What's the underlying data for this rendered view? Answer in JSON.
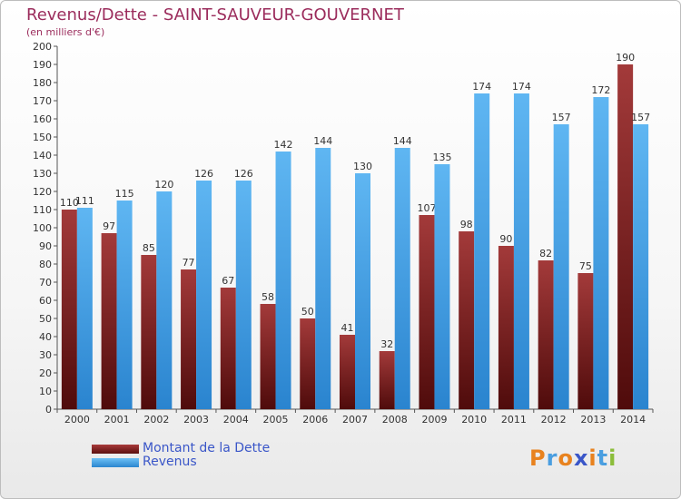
{
  "chart_data": {
    "type": "bar",
    "title": "Revenus/Dette - SAINT-SAUVEUR-GOUVERNET",
    "subtitle": "(en milliers d'€)",
    "categories": [
      "2000",
      "2001",
      "2002",
      "2003",
      "2004",
      "2005",
      "2006",
      "2007",
      "2008",
      "2009",
      "2010",
      "2011",
      "2012",
      "2013",
      "2014"
    ],
    "series": [
      {
        "name": "Montant de la Dette",
        "color": "#7f1d1d",
        "values": [
          110,
          97,
          85,
          77,
          67,
          58,
          50,
          41,
          32,
          107,
          98,
          90,
          82,
          75,
          190
        ]
      },
      {
        "name": "Revenus",
        "color": "#3b9de3",
        "values": [
          111,
          115,
          120,
          126,
          126,
          142,
          144,
          130,
          144,
          135,
          174,
          174,
          157,
          172,
          157
        ]
      }
    ],
    "ylim": [
      0,
      200
    ],
    "ytick_step": 10,
    "grid": false,
    "legend_position": "bottom-left"
  },
  "logo": {
    "letters": [
      "P",
      "r",
      "o",
      "x",
      "i",
      "t",
      "i"
    ],
    "colors": [
      "#e8821e",
      "#4a9ee0",
      "#e8821e",
      "#3a56c8",
      "#e8821e",
      "#4a9ee0",
      "#8bbd3a"
    ]
  }
}
